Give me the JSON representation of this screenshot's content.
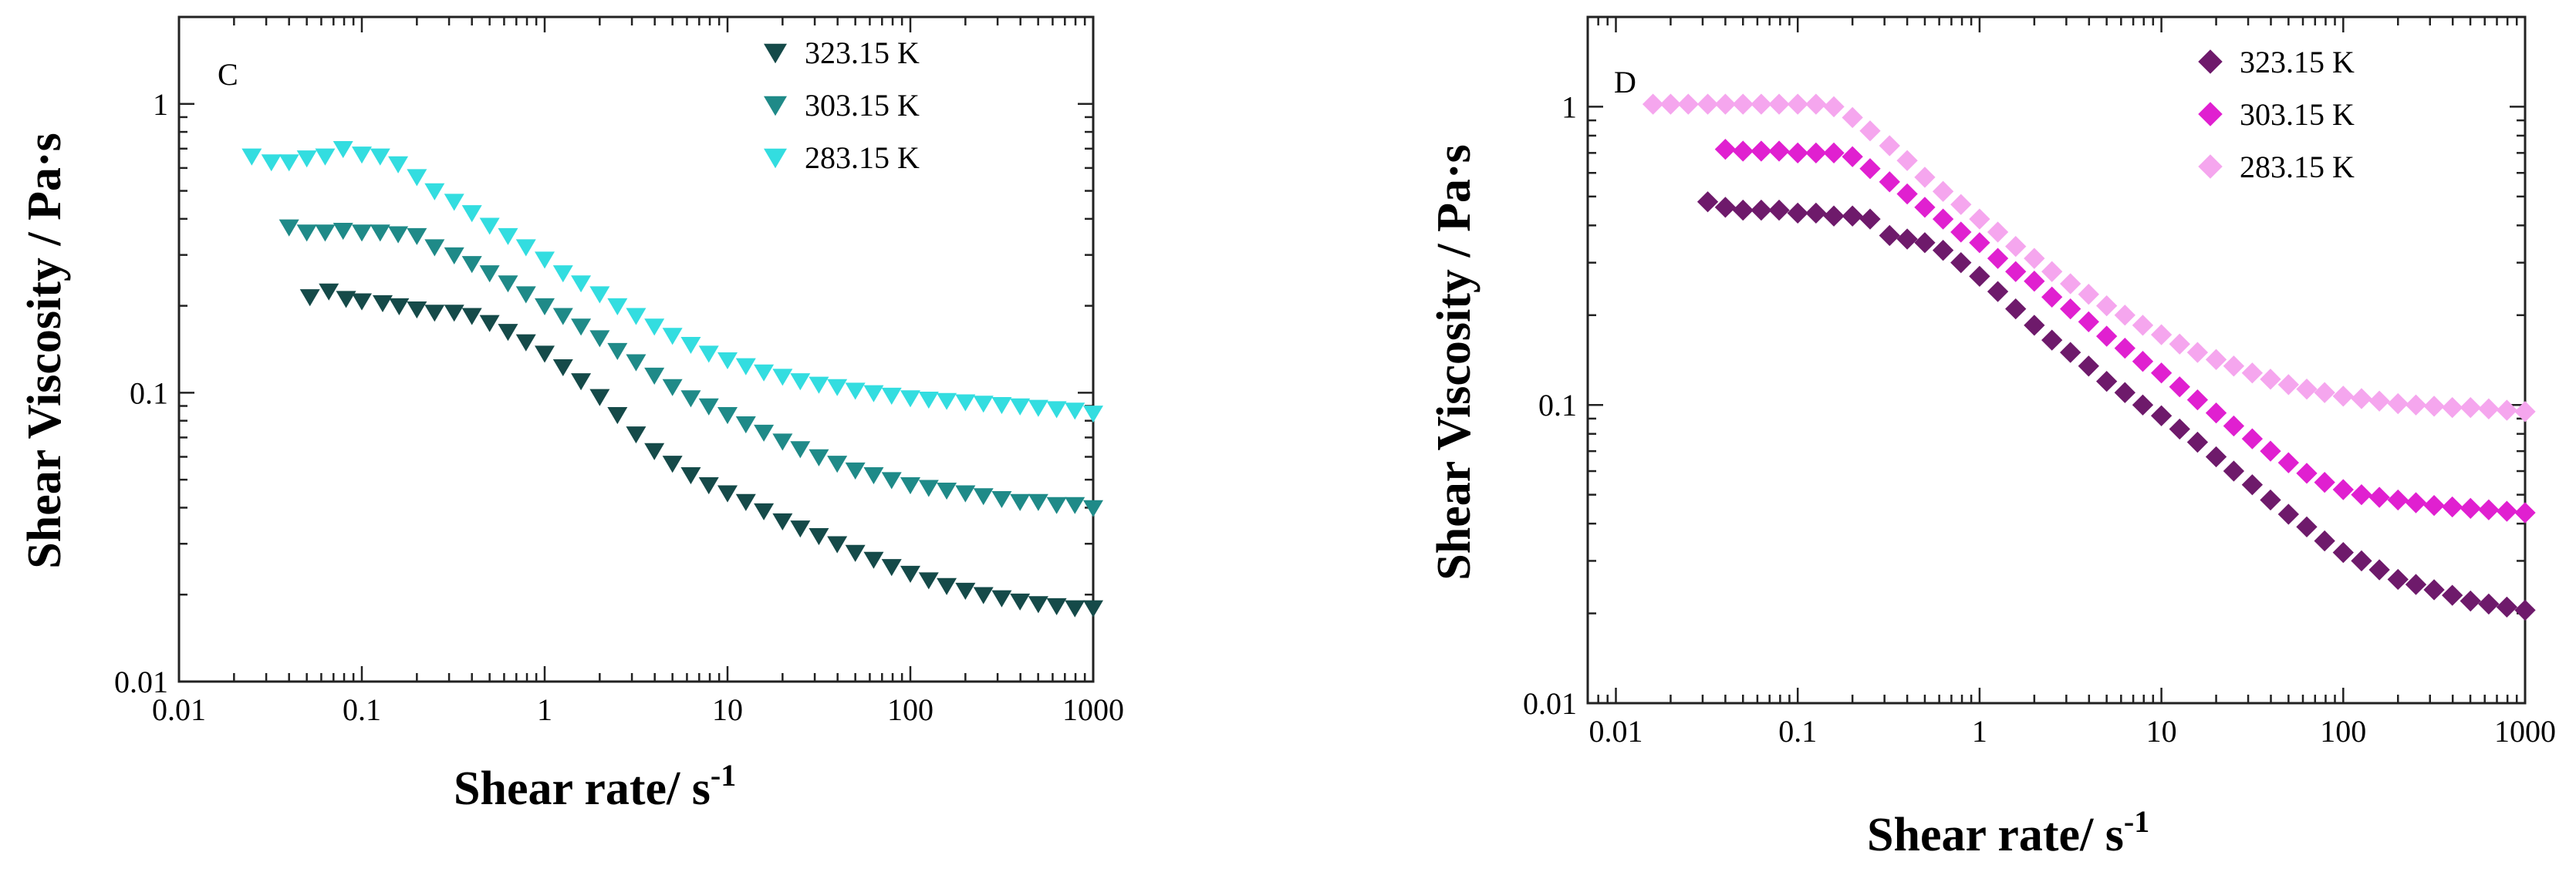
{
  "chart_data": [
    {
      "type": "scatter",
      "panel_label": "C",
      "marker": "triangle-down",
      "xscale": "log",
      "yscale": "log",
      "xlim": [
        0.01,
        1000
      ],
      "ylim": [
        0.01,
        2
      ],
      "xticks": [
        0.01,
        0.1,
        1,
        10,
        100,
        1000
      ],
      "xtick_labels": [
        "0.01",
        "0.1",
        "1",
        "10",
        "100",
        "1000"
      ],
      "yticks": [
        0.01,
        0.1,
        1
      ],
      "ytick_labels": [
        "0.01",
        "0.1",
        "1"
      ],
      "xlabel": "Shear rate/ s",
      "xlabel_sup": "-1",
      "ylabel": "Shear Viscosity / Pa·s",
      "legend_position": "top-right",
      "series": [
        {
          "name": "323.15 K",
          "color": "#154a49",
          "x": [
            0.052,
            0.066,
            0.082,
            0.1,
            0.13,
            0.16,
            0.2,
            0.25,
            0.32,
            0.4,
            0.5,
            0.63,
            0.79,
            1.0,
            1.26,
            1.58,
            2.0,
            2.5,
            3.16,
            3.98,
            5.0,
            6.3,
            7.9,
            10,
            12.6,
            15.8,
            20,
            25,
            31.6,
            39.8,
            50,
            63,
            79,
            100,
            126,
            158,
            200,
            251,
            316,
            398,
            501,
            631,
            794,
            1000
          ],
          "y": [
            0.215,
            0.225,
            0.212,
            0.208,
            0.205,
            0.2,
            0.195,
            0.19,
            0.19,
            0.185,
            0.175,
            0.163,
            0.15,
            0.137,
            0.123,
            0.11,
            0.097,
            0.084,
            0.072,
            0.063,
            0.057,
            0.052,
            0.048,
            0.045,
            0.042,
            0.039,
            0.036,
            0.034,
            0.032,
            0.03,
            0.028,
            0.0265,
            0.025,
            0.0237,
            0.0225,
            0.0215,
            0.0207,
            0.02,
            0.0195,
            0.019,
            0.0186,
            0.0183,
            0.018,
            0.018
          ]
        },
        {
          "name": "303.15 K",
          "color": "#1f8a88",
          "x": [
            0.04,
            0.05,
            0.063,
            0.079,
            0.1,
            0.126,
            0.158,
            0.2,
            0.25,
            0.32,
            0.4,
            0.5,
            0.63,
            0.79,
            1.0,
            1.26,
            1.58,
            2.0,
            2.5,
            3.16,
            3.98,
            5.0,
            6.3,
            7.9,
            10,
            12.6,
            15.8,
            20,
            25,
            31.6,
            39.8,
            50,
            63,
            79,
            100,
            126,
            158,
            200,
            251,
            316,
            398,
            501,
            631,
            794,
            1000
          ],
          "y": [
            0.375,
            0.36,
            0.36,
            0.365,
            0.36,
            0.36,
            0.355,
            0.35,
            0.32,
            0.3,
            0.28,
            0.26,
            0.24,
            0.22,
            0.2,
            0.185,
            0.17,
            0.155,
            0.14,
            0.128,
            0.115,
            0.105,
            0.096,
            0.09,
            0.084,
            0.078,
            0.073,
            0.068,
            0.064,
            0.06,
            0.057,
            0.054,
            0.052,
            0.05,
            0.048,
            0.047,
            0.046,
            0.045,
            0.044,
            0.043,
            0.042,
            0.042,
            0.041,
            0.041,
            0.04
          ]
        },
        {
          "name": "283.15 K",
          "color": "#33dde0",
          "x": [
            0.025,
            0.032,
            0.04,
            0.05,
            0.063,
            0.079,
            0.1,
            0.126,
            0.158,
            0.2,
            0.25,
            0.32,
            0.4,
            0.5,
            0.63,
            0.79,
            1.0,
            1.26,
            1.58,
            2.0,
            2.5,
            3.16,
            3.98,
            5.0,
            6.3,
            7.9,
            10,
            12.6,
            15.8,
            20,
            25,
            31.6,
            39.8,
            50,
            63,
            79,
            100,
            126,
            158,
            200,
            251,
            316,
            398,
            501,
            631,
            794,
            1000
          ],
          "y": [
            0.66,
            0.63,
            0.63,
            0.65,
            0.66,
            0.7,
            0.67,
            0.66,
            0.62,
            0.56,
            0.5,
            0.46,
            0.42,
            0.38,
            0.35,
            0.32,
            0.29,
            0.26,
            0.24,
            0.22,
            0.2,
            0.185,
            0.17,
            0.158,
            0.147,
            0.137,
            0.13,
            0.124,
            0.118,
            0.114,
            0.11,
            0.107,
            0.105,
            0.102,
            0.1,
            0.098,
            0.096,
            0.095,
            0.094,
            0.093,
            0.092,
            0.091,
            0.09,
            0.089,
            0.088,
            0.087,
            0.085
          ]
        }
      ]
    },
    {
      "type": "scatter",
      "panel_label": "D",
      "marker": "diamond",
      "xscale": "log",
      "yscale": "log",
      "xlim": [
        0.007,
        1000
      ],
      "ylim": [
        0.01,
        2
      ],
      "xticks": [
        0.01,
        0.1,
        1,
        10,
        100,
        1000
      ],
      "xtick_labels": [
        "0.01",
        "0.1",
        "1",
        "10",
        "100",
        "1000"
      ],
      "yticks": [
        0.01,
        0.1,
        1
      ],
      "ytick_labels": [
        "0.01",
        "0.1",
        "1"
      ],
      "xlabel": "Shear rate/ s",
      "xlabel_sup": "-1",
      "ylabel": "Shear Viscosity / Pa·s",
      "legend_position": "top-right",
      "series": [
        {
          "name": "323.15 K",
          "color": "#6e1a6b",
          "x": [
            0.032,
            0.04,
            0.05,
            0.063,
            0.079,
            0.1,
            0.126,
            0.158,
            0.2,
            0.25,
            0.32,
            0.4,
            0.5,
            0.63,
            0.79,
            1.0,
            1.26,
            1.58,
            2.0,
            2.5,
            3.16,
            3.98,
            5.0,
            6.3,
            7.9,
            10,
            12.6,
            15.8,
            20,
            25,
            31.6,
            39.8,
            50,
            63,
            79,
            100,
            126,
            158,
            200,
            251,
            316,
            398,
            501,
            631,
            794,
            1000
          ],
          "y": [
            0.48,
            0.46,
            0.45,
            0.45,
            0.45,
            0.44,
            0.44,
            0.43,
            0.43,
            0.42,
            0.37,
            0.36,
            0.35,
            0.33,
            0.3,
            0.27,
            0.24,
            0.21,
            0.185,
            0.165,
            0.15,
            0.135,
            0.12,
            0.11,
            0.1,
            0.092,
            0.083,
            0.075,
            0.067,
            0.06,
            0.054,
            0.048,
            0.043,
            0.039,
            0.035,
            0.032,
            0.03,
            0.028,
            0.026,
            0.025,
            0.024,
            0.023,
            0.022,
            0.0215,
            0.021,
            0.0205
          ]
        },
        {
          "name": "303.15 K",
          "color": "#e020d0",
          "x": [
            0.04,
            0.05,
            0.063,
            0.079,
            0.1,
            0.126,
            0.158,
            0.2,
            0.25,
            0.32,
            0.4,
            0.5,
            0.63,
            0.79,
            1.0,
            1.26,
            1.58,
            2.0,
            2.5,
            3.16,
            3.98,
            5.0,
            6.3,
            7.9,
            10,
            12.6,
            15.8,
            20,
            25,
            31.6,
            39.8,
            50,
            63,
            79,
            100,
            126,
            158,
            200,
            251,
            316,
            398,
            501,
            631,
            794,
            1000
          ],
          "y": [
            0.72,
            0.71,
            0.71,
            0.71,
            0.7,
            0.7,
            0.7,
            0.68,
            0.62,
            0.56,
            0.51,
            0.46,
            0.42,
            0.38,
            0.35,
            0.31,
            0.28,
            0.26,
            0.23,
            0.21,
            0.19,
            0.17,
            0.155,
            0.14,
            0.128,
            0.115,
            0.104,
            0.094,
            0.085,
            0.077,
            0.07,
            0.064,
            0.059,
            0.055,
            0.052,
            0.05,
            0.049,
            0.048,
            0.047,
            0.046,
            0.0455,
            0.045,
            0.0445,
            0.044,
            0.0435
          ]
        },
        {
          "name": "283.15 K",
          "color": "#f5a6ee",
          "x": [
            0.016,
            0.02,
            0.025,
            0.032,
            0.04,
            0.05,
            0.063,
            0.079,
            0.1,
            0.126,
            0.158,
            0.2,
            0.25,
            0.32,
            0.4,
            0.5,
            0.63,
            0.79,
            1.0,
            1.26,
            1.58,
            2.0,
            2.5,
            3.16,
            3.98,
            5.0,
            6.3,
            7.9,
            10,
            12.6,
            15.8,
            20,
            25,
            31.6,
            39.8,
            50,
            63,
            79,
            100,
            126,
            158,
            200,
            251,
            316,
            398,
            501,
            631,
            794,
            1000
          ],
          "y": [
            1.02,
            1.02,
            1.02,
            1.02,
            1.02,
            1.02,
            1.02,
            1.02,
            1.02,
            1.02,
            1.0,
            0.92,
            0.83,
            0.74,
            0.66,
            0.58,
            0.52,
            0.47,
            0.42,
            0.38,
            0.34,
            0.31,
            0.28,
            0.255,
            0.235,
            0.215,
            0.2,
            0.185,
            0.172,
            0.16,
            0.15,
            0.142,
            0.135,
            0.128,
            0.122,
            0.117,
            0.113,
            0.11,
            0.107,
            0.105,
            0.103,
            0.101,
            0.1,
            0.099,
            0.098,
            0.098,
            0.097,
            0.096,
            0.095
          ]
        }
      ]
    }
  ]
}
